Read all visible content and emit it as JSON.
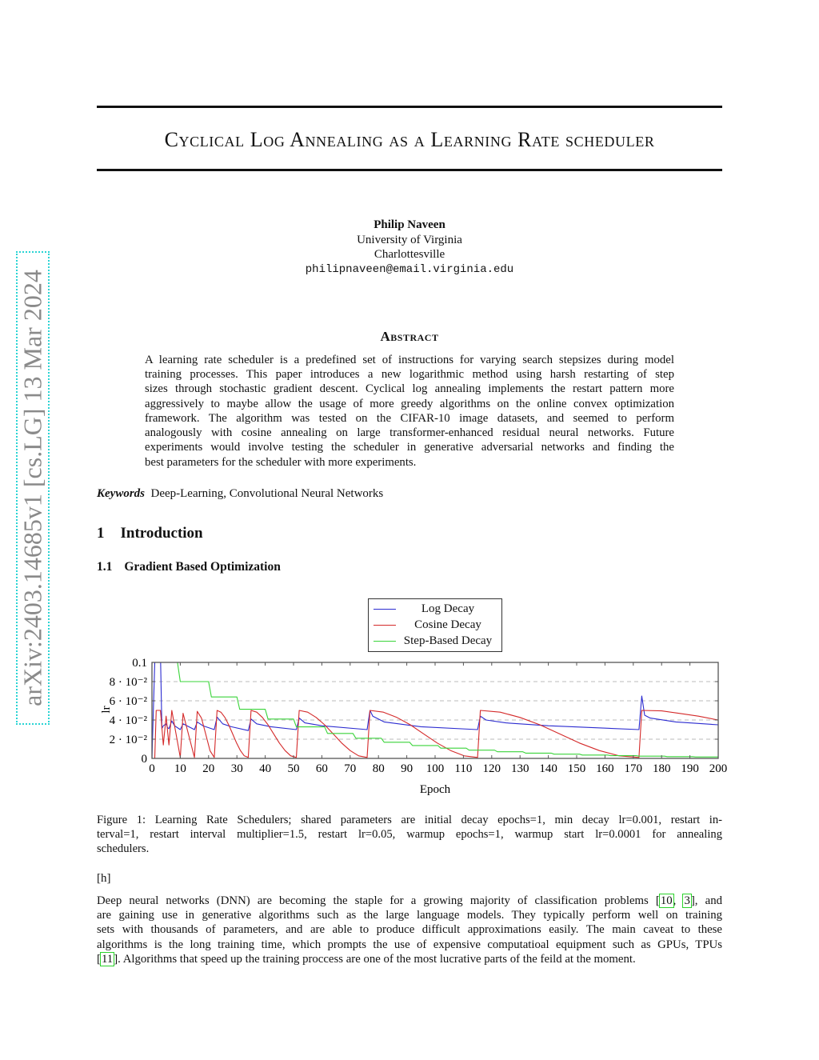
{
  "sidebar": {
    "arxiv_id": "arXiv:2403.14685v1  [cs.LG]  13 Mar 2024"
  },
  "title": "Cyclical Log Annealing as a Learning Rate scheduler",
  "author": {
    "name": "Philip Naveen",
    "affiliation": "University of Virginia",
    "location": "Charlottesville",
    "email": "philipnaveen@email.virginia.edu"
  },
  "abstract": {
    "heading": "Abstract",
    "lines": [
      "A learning rate scheduler is a predefined set of instructions for varying search stepsizes during model",
      "training processes.  This paper introduces a new logarithmic method using harsh restarting of step",
      "sizes through stochastic gradient descent. Cyclical log annealing implements the restart pattern more",
      "aggressively to maybe allow the usage of more greedy algorithms on the online convex optimization",
      "framework.  The algorithm was tested on the CIFAR-10 image datasets, and seemed to perform",
      "analogously with cosine annealing on large transformer-enhanced residual neural networks. Future",
      "experiments would involve testing the scheduler in generative adversarial networks and finding the",
      "best parameters for the scheduler with more experiments."
    ]
  },
  "keywords": {
    "label": "Keywords",
    "text": "Deep-Learning, Convolutional Neural Networks"
  },
  "section": {
    "number": "1",
    "title": "Introduction"
  },
  "subsection": {
    "number": "1.1",
    "title": "Gradient Based Optimization"
  },
  "chart_data": {
    "type": "line",
    "xlabel": "Epoch",
    "ylabel": "lr",
    "xlim": [
      0,
      200
    ],
    "ylim": [
      0,
      0.1
    ],
    "x_ticks": [
      0,
      10,
      20,
      30,
      40,
      50,
      60,
      70,
      80,
      90,
      100,
      110,
      120,
      130,
      140,
      150,
      160,
      170,
      180,
      190,
      200
    ],
    "y_ticks": [
      0,
      0.02,
      0.04,
      0.06,
      0.08,
      0.1
    ],
    "y_tick_labels": [
      "0",
      "2 · 10⁻²",
      "4 · 10⁻²",
      "6 · 10⁻²",
      "8 · 10⁻²",
      "0.1"
    ],
    "grid": "horizontal dashed",
    "legend_position": "top-center, above plot",
    "series": [
      {
        "name": "Log Decay",
        "color": "#2b2bd0",
        "points": [
          [
            0,
            0
          ],
          [
            1,
            0.1
          ],
          [
            1.5,
            0.11
          ],
          [
            2,
            0.1
          ],
          [
            3,
            0.11
          ],
          [
            3.5,
            0.031
          ],
          [
            4,
            0.034
          ],
          [
            5,
            0.036
          ],
          [
            5.5,
            0.032
          ],
          [
            6,
            0.031
          ],
          [
            7,
            0.039
          ],
          [
            8,
            0.034
          ],
          [
            10,
            0.03
          ],
          [
            11,
            0.036
          ],
          [
            13,
            0.033
          ],
          [
            15,
            0.03
          ],
          [
            16,
            0.038
          ],
          [
            18,
            0.034
          ],
          [
            22,
            0.03
          ],
          [
            23,
            0.043
          ],
          [
            25,
            0.036
          ],
          [
            28,
            0.033
          ],
          [
            34,
            0.029
          ],
          [
            35,
            0.041
          ],
          [
            37,
            0.036
          ],
          [
            42,
            0.033
          ],
          [
            51,
            0.03
          ],
          [
            52,
            0.042
          ],
          [
            54,
            0.037
          ],
          [
            60,
            0.034
          ],
          [
            76,
            0.03
          ],
          [
            77,
            0.05
          ],
          [
            78,
            0.044
          ],
          [
            82,
            0.038
          ],
          [
            95,
            0.033
          ],
          [
            115,
            0.03
          ],
          [
            116,
            0.044
          ],
          [
            118,
            0.04
          ],
          [
            125,
            0.037
          ],
          [
            140,
            0.034
          ],
          [
            172,
            0.03
          ],
          [
            173,
            0.065
          ],
          [
            174,
            0.045
          ],
          [
            176,
            0.042
          ],
          [
            185,
            0.038
          ],
          [
            200,
            0.035
          ]
        ]
      },
      {
        "name": "Cosine Decay",
        "color": "#d42a2a",
        "points": [
          [
            0,
            0
          ],
          [
            1,
            0
          ],
          [
            1.5,
            0.05
          ],
          [
            3,
            0.05
          ],
          [
            4,
            0.014
          ],
          [
            5,
            0.044
          ],
          [
            6,
            0.014
          ],
          [
            7,
            0.05
          ],
          [
            10,
            0.001
          ],
          [
            11,
            0.047
          ],
          [
            15,
            0.001
          ],
          [
            16,
            0.049
          ],
          [
            17.5,
            0.042
          ],
          [
            19,
            0.025
          ],
          [
            20.5,
            0.008
          ],
          [
            22,
            0.001
          ],
          [
            23,
            0.05
          ],
          [
            24.4,
            0.048
          ],
          [
            25.75,
            0.0427
          ],
          [
            27.1,
            0.035
          ],
          [
            28.5,
            0.0255
          ],
          [
            29.9,
            0.016
          ],
          [
            31.25,
            0.0082
          ],
          [
            32.6,
            0.0027
          ],
          [
            34,
            0.001
          ],
          [
            35,
            0.05
          ],
          [
            37,
            0.0482
          ],
          [
            39,
            0.0427
          ],
          [
            41,
            0.035
          ],
          [
            43,
            0.0255
          ],
          [
            45,
            0.016
          ],
          [
            47,
            0.0082
          ],
          [
            49,
            0.0027
          ],
          [
            51,
            0.001
          ],
          [
            52,
            0.05
          ],
          [
            55,
            0.0482
          ],
          [
            58,
            0.0427
          ],
          [
            61,
            0.035
          ],
          [
            64,
            0.0255
          ],
          [
            67,
            0.016
          ],
          [
            70,
            0.0082
          ],
          [
            73,
            0.0027
          ],
          [
            76,
            0.001
          ],
          [
            77,
            0.05
          ],
          [
            81.75,
            0.0482
          ],
          [
            86.5,
            0.0427
          ],
          [
            91.25,
            0.035
          ],
          [
            96,
            0.0255
          ],
          [
            100.75,
            0.016
          ],
          [
            105.5,
            0.0082
          ],
          [
            110.25,
            0.0027
          ],
          [
            115,
            0.001
          ],
          [
            116,
            0.05
          ],
          [
            123,
            0.0482
          ],
          [
            130,
            0.0427
          ],
          [
            137,
            0.035
          ],
          [
            144,
            0.0255
          ],
          [
            151,
            0.016
          ],
          [
            158,
            0.0082
          ],
          [
            165,
            0.0027
          ],
          [
            172,
            0.001
          ],
          [
            173,
            0.05
          ],
          [
            180,
            0.0495
          ],
          [
            186,
            0.047
          ],
          [
            193,
            0.044
          ],
          [
            200,
            0.04
          ]
        ]
      },
      {
        "name": "Step-Based Decay",
        "color": "#3ad43a",
        "points": [
          [
            0,
            0.1
          ],
          [
            9,
            0.1
          ],
          [
            10,
            0.08
          ],
          [
            20,
            0.08
          ],
          [
            21,
            0.064
          ],
          [
            30,
            0.064
          ],
          [
            31,
            0.0512
          ],
          [
            40,
            0.0512
          ],
          [
            41,
            0.041
          ],
          [
            50,
            0.041
          ],
          [
            51,
            0.0328
          ],
          [
            61,
            0.0328
          ],
          [
            62,
            0.026
          ],
          [
            71,
            0.026
          ],
          [
            72,
            0.021
          ],
          [
            81,
            0.021
          ],
          [
            82,
            0.0168
          ],
          [
            91,
            0.0168
          ],
          [
            92,
            0.0134
          ],
          [
            101,
            0.0134
          ],
          [
            102,
            0.0107
          ],
          [
            111,
            0.0107
          ],
          [
            112,
            0.0086
          ],
          [
            121,
            0.0086
          ],
          [
            122,
            0.0069
          ],
          [
            131,
            0.0069
          ],
          [
            132,
            0.0055
          ],
          [
            141,
            0.0055
          ],
          [
            142,
            0.0044
          ],
          [
            151,
            0.0044
          ],
          [
            152,
            0.0035
          ],
          [
            161,
            0.0035
          ],
          [
            162,
            0.0028
          ],
          [
            171,
            0.0028
          ],
          [
            172,
            0.0023
          ],
          [
            181,
            0.0023
          ],
          [
            182,
            0.0018
          ],
          [
            191,
            0.0018
          ],
          [
            192,
            0.0015
          ],
          [
            200,
            0.0015
          ]
        ]
      }
    ]
  },
  "caption": {
    "lines": [
      "Figure 1:  Learning Rate Schedulers; shared parameters are initial decay epochs=1, min decay lr=0.001, restart in-",
      "terval=1, restart interval multiplier=1.5, restart lr=0.05, warmup epochs=1, warmup start lr=0.0001 for annealing",
      "schedulers."
    ]
  },
  "float_marker": "[h]",
  "body": {
    "line0_a": "Deep neural networks (DNN) are becoming the staple for a growing majority of classification problems [",
    "cite_10": "10",
    "sep": ", ",
    "cite_3": "3",
    "line0_b": "], and",
    "lines": [
      "are gaining use in generative algorithms such as the large language models.  They typically perform well on training",
      "sets with thousands of parameters, and are able to produce difficult approximations easily.  The main caveat to these",
      "algorithms is the long training time, which prompts the use of expensive computatioal equipment such as GPUs, TPUs"
    ],
    "line4_a": "[",
    "cite_11": "11",
    "line4_b": "]. Algorithms that speed up the training proccess are one of the most lucrative parts of the feild at the moment."
  }
}
